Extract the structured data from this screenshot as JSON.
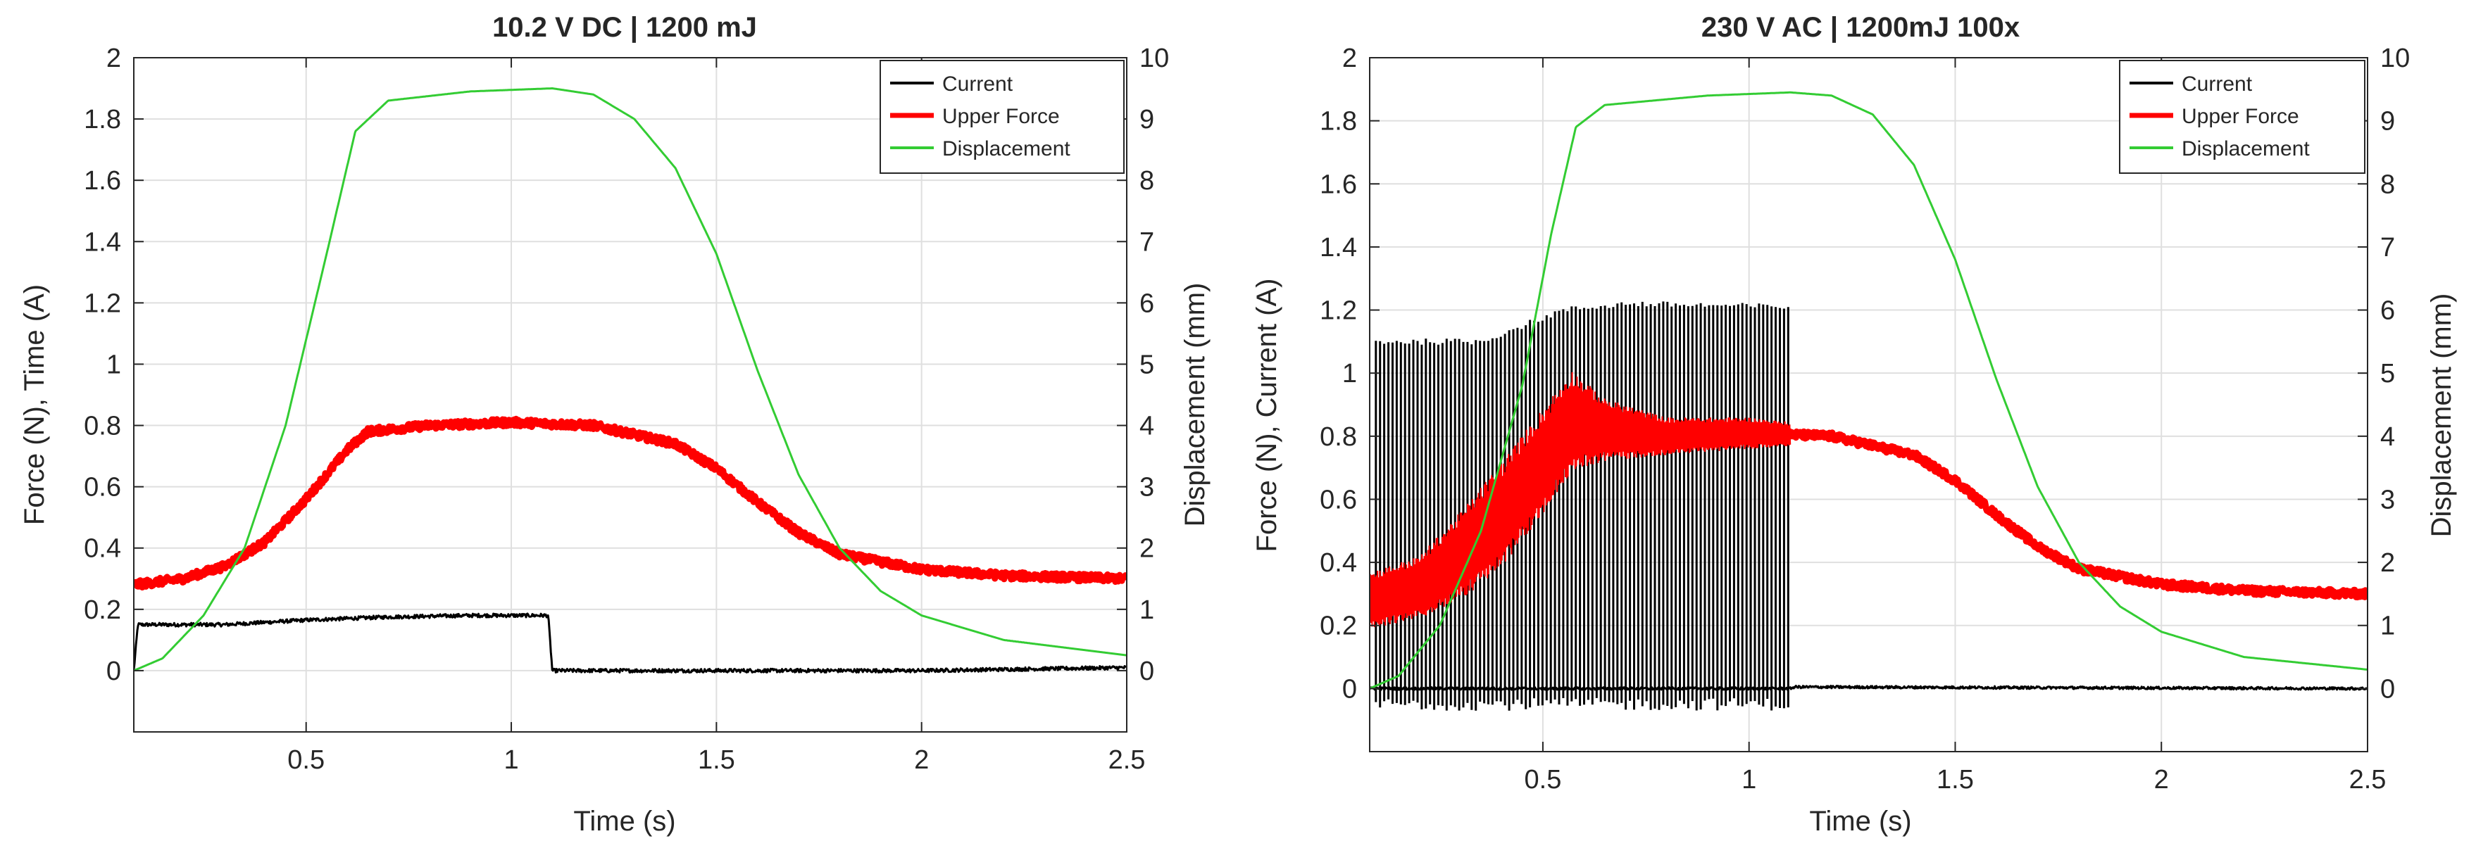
{
  "chart_data": [
    {
      "type": "line",
      "title": "10.2 V DC | 1200 mJ",
      "xlabel": "Time (s)",
      "ylabel": "Force (N), Time (A)",
      "y2label": "Displacement (mm)",
      "xlim": [
        0.08,
        2.5
      ],
      "ylim": [
        -0.2,
        2
      ],
      "y2lim": [
        -1,
        10
      ],
      "grid": true,
      "legend_position": "top-right",
      "xticks": [
        0.5,
        1,
        1.5,
        2,
        2.5
      ],
      "xtick_labels": [
        "0.5",
        "1",
        "1.5",
        "2",
        "2.5"
      ],
      "yticks": [
        0,
        0.2,
        0.4,
        0.6,
        0.8,
        1,
        1.2,
        1.4,
        1.6,
        1.8,
        2
      ],
      "ytick_labels": [
        "0",
        "0.2",
        "0.4",
        "0.6",
        "0.8",
        "1",
        "1.2",
        "1.4",
        "1.6",
        "1.8",
        "2"
      ],
      "y2ticks": [
        0,
        1,
        2,
        3,
        4,
        5,
        6,
        7,
        8,
        9,
        10
      ],
      "y2tick_labels": [
        "0",
        "1",
        "2",
        "3",
        "4",
        "5",
        "6",
        "7",
        "8",
        "9",
        "10"
      ],
      "series": [
        {
          "name": "Current",
          "color": "#000000",
          "axis": "left",
          "noise": 0.006,
          "x": [
            0.08,
            0.09,
            0.1,
            0.3,
            0.5,
            0.7,
            0.9,
            1.09,
            1.1,
            1.5,
            2.0,
            2.5
          ],
          "y": [
            0.0,
            0.15,
            0.15,
            0.15,
            0.165,
            0.175,
            0.18,
            0.18,
            0.0,
            0.0,
            0.0,
            0.01
          ]
        },
        {
          "name": "Upper Force",
          "color": "#ff0000",
          "axis": "left",
          "noise": 0.012,
          "x": [
            0.08,
            0.2,
            0.3,
            0.4,
            0.5,
            0.6,
            0.65,
            0.8,
            1.0,
            1.2,
            1.4,
            1.5,
            1.6,
            1.7,
            1.8,
            2.0,
            2.2,
            2.5
          ],
          "y": [
            0.28,
            0.3,
            0.34,
            0.42,
            0.56,
            0.72,
            0.78,
            0.8,
            0.81,
            0.8,
            0.74,
            0.66,
            0.55,
            0.45,
            0.38,
            0.33,
            0.31,
            0.3
          ]
        },
        {
          "name": "Displacement",
          "color": "#33cc33",
          "axis": "right",
          "noise": 0,
          "x": [
            0.08,
            0.15,
            0.25,
            0.35,
            0.45,
            0.55,
            0.62,
            0.7,
            0.9,
            1.1,
            1.2,
            1.3,
            1.4,
            1.5,
            1.6,
            1.7,
            1.8,
            1.9,
            2.0,
            2.2,
            2.5
          ],
          "y": [
            0.0,
            0.2,
            0.9,
            2.0,
            4.0,
            6.8,
            8.8,
            9.3,
            9.45,
            9.5,
            9.4,
            9.0,
            8.2,
            6.8,
            4.9,
            3.2,
            2.0,
            1.3,
            0.9,
            0.5,
            0.25
          ]
        }
      ]
    },
    {
      "type": "line",
      "title": "230 V AC | 1200mJ 100x",
      "xlabel": "Time (s)",
      "ylabel": "Force (N), Current (A)",
      "y2label": "Displacement (mm)",
      "xlim": [
        0.08,
        2.5
      ],
      "ylim": [
        -0.2,
        2
      ],
      "y2lim": [
        -1,
        10
      ],
      "grid": true,
      "legend_position": "top-right",
      "xticks": [
        0.5,
        1,
        1.5,
        2,
        2.5
      ],
      "xtick_labels": [
        "0.5",
        "1",
        "1.5",
        "2",
        "2.5"
      ],
      "yticks": [
        0,
        0.2,
        0.4,
        0.6,
        0.8,
        1,
        1.2,
        1.4,
        1.6,
        1.8,
        2
      ],
      "ytick_labels": [
        "0",
        "0.2",
        "0.4",
        "0.6",
        "0.8",
        "1",
        "1.2",
        "1.4",
        "1.6",
        "1.8",
        "2"
      ],
      "y2ticks": [
        0,
        1,
        2,
        3,
        4,
        5,
        6,
        7,
        8,
        9,
        10
      ],
      "y2tick_labels": [
        "0",
        "1",
        "2",
        "3",
        "4",
        "5",
        "6",
        "7",
        "8",
        "9",
        "10"
      ],
      "series": [
        {
          "name": "Current",
          "color": "#000000",
          "axis": "left",
          "noise": 0.004,
          "oscillation": {
            "x_start": 0.09,
            "x_end": 1.1,
            "cycles": 100,
            "env_x": [
              0.09,
              0.35,
              0.45,
              0.55,
              0.7,
              1.1
            ],
            "env_max": [
              1.1,
              1.1,
              1.15,
              1.2,
              1.22,
              1.21
            ],
            "min": -0.05
          },
          "x": [
            0.08,
            1.1,
            1.11,
            2.5
          ],
          "y": [
            0.0,
            0.0,
            0.005,
            0.0
          ]
        },
        {
          "name": "Upper Force",
          "color": "#ff0000",
          "axis": "left",
          "noise": 0.012,
          "band": {
            "x": [
              0.08,
              0.2,
              0.3,
              0.4,
              0.5,
              0.57,
              0.65,
              0.8,
              1.0,
              1.1
            ],
            "width": [
              0.18,
              0.2,
              0.28,
              0.34,
              0.34,
              0.32,
              0.2,
              0.12,
              0.1,
              0.08
            ]
          },
          "x": [
            0.08,
            0.2,
            0.3,
            0.4,
            0.5,
            0.57,
            0.65,
            0.8,
            1.0,
            1.2,
            1.4,
            1.5,
            1.6,
            1.7,
            1.8,
            2.0,
            2.2,
            2.5
          ],
          "y": [
            0.28,
            0.32,
            0.42,
            0.55,
            0.72,
            0.85,
            0.82,
            0.8,
            0.81,
            0.8,
            0.74,
            0.66,
            0.55,
            0.45,
            0.38,
            0.33,
            0.31,
            0.3
          ]
        },
        {
          "name": "Displacement",
          "color": "#33cc33",
          "axis": "right",
          "noise": 0,
          "x": [
            0.08,
            0.15,
            0.25,
            0.35,
            0.45,
            0.52,
            0.58,
            0.65,
            0.9,
            1.1,
            1.2,
            1.3,
            1.4,
            1.5,
            1.6,
            1.7,
            1.8,
            1.9,
            2.0,
            2.2,
            2.5
          ],
          "y": [
            0.0,
            0.2,
            1.0,
            2.5,
            4.8,
            7.2,
            8.9,
            9.25,
            9.4,
            9.45,
            9.4,
            9.1,
            8.3,
            6.8,
            4.9,
            3.2,
            2.0,
            1.3,
            0.9,
            0.5,
            0.3
          ]
        }
      ]
    }
  ]
}
